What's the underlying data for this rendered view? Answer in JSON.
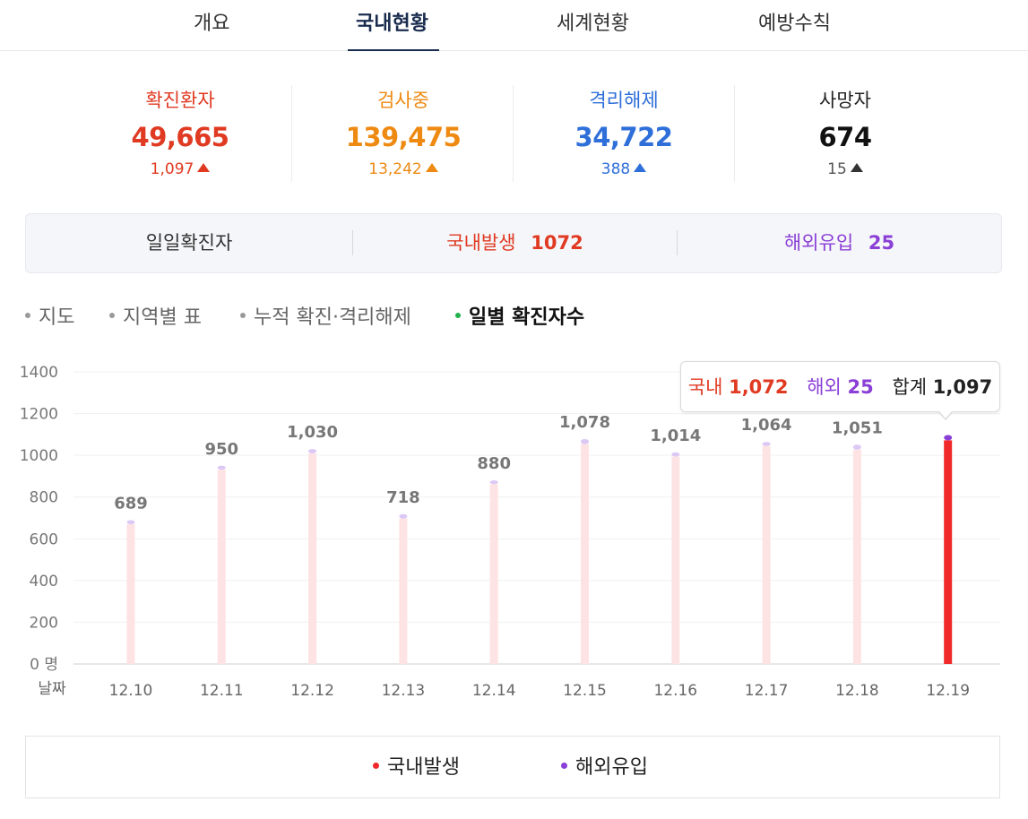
{
  "tabs": [
    {
      "label": "개요",
      "active": false
    },
    {
      "label": "국내현황",
      "active": true
    },
    {
      "label": "세계현황",
      "active": false
    },
    {
      "label": "예방수칙",
      "active": false
    }
  ],
  "stats": [
    {
      "label": "확진환자",
      "value": "49,665",
      "delta": "1,097",
      "color": "#e03a22"
    },
    {
      "label": "검사중",
      "value": "139,475",
      "delta": "13,242",
      "color": "#ee8a12"
    },
    {
      "label": "격리해제",
      "value": "34,722",
      "delta": "388",
      "color": "#2f6fd9"
    },
    {
      "label": "사망자",
      "value": "674",
      "delta": "15",
      "color": "#222222"
    }
  ],
  "daily": {
    "title": "일일확진자",
    "domestic_label": "국내발생",
    "domestic_value": "1072",
    "overseas_label": "해외유입",
    "overseas_value": "25"
  },
  "subtabs": [
    {
      "label": "지도",
      "active": false
    },
    {
      "label": "지역별 표",
      "active": false
    },
    {
      "label": "누적 확진·격리해제",
      "active": false
    },
    {
      "label": "일별 확진자수",
      "active": true
    }
  ],
  "tooltip": {
    "domestic_label": "국내",
    "domestic_value": "1,072",
    "overseas_label": "해외",
    "overseas_value": "25",
    "total_label": "합계",
    "total_value": "1,097"
  },
  "colors": {
    "domestic": "#f0292a",
    "overseas": "#8a3fd6",
    "bar_faded": "#fde3e3",
    "cap_faded": "#dcc8f5",
    "active_dot": "#21b24b"
  },
  "chart_data": {
    "type": "bar",
    "stacked": true,
    "categories": [
      "12.10",
      "12.11",
      "12.12",
      "12.13",
      "12.14",
      "12.15",
      "12.16",
      "12.17",
      "12.18",
      "12.19"
    ],
    "totals": [
      "689",
      "950",
      "1,030",
      "718",
      "880",
      "1,078",
      "1,014",
      "1,064",
      "1,051",
      ""
    ],
    "series": [
      {
        "name": "국내발생",
        "values": [
          670,
          931,
          1010,
          697,
          862,
          1054,
          994,
          1045,
          1028,
          1072
        ]
      },
      {
        "name": "해외유입",
        "values": [
          19,
          19,
          20,
          21,
          18,
          24,
          20,
          19,
          23,
          25
        ]
      }
    ],
    "y_ticks": [
      "1400",
      "1200",
      "1000",
      "800",
      "600",
      "400",
      "200",
      "0 명"
    ],
    "x_axis_label": "날짜",
    "ylim": [
      0,
      1400
    ],
    "highlight_index": 9,
    "grid": true
  },
  "legend": [
    {
      "label": "국내발생",
      "color": "#f0292a"
    },
    {
      "label": "해외유입",
      "color": "#8a3fd6"
    }
  ]
}
